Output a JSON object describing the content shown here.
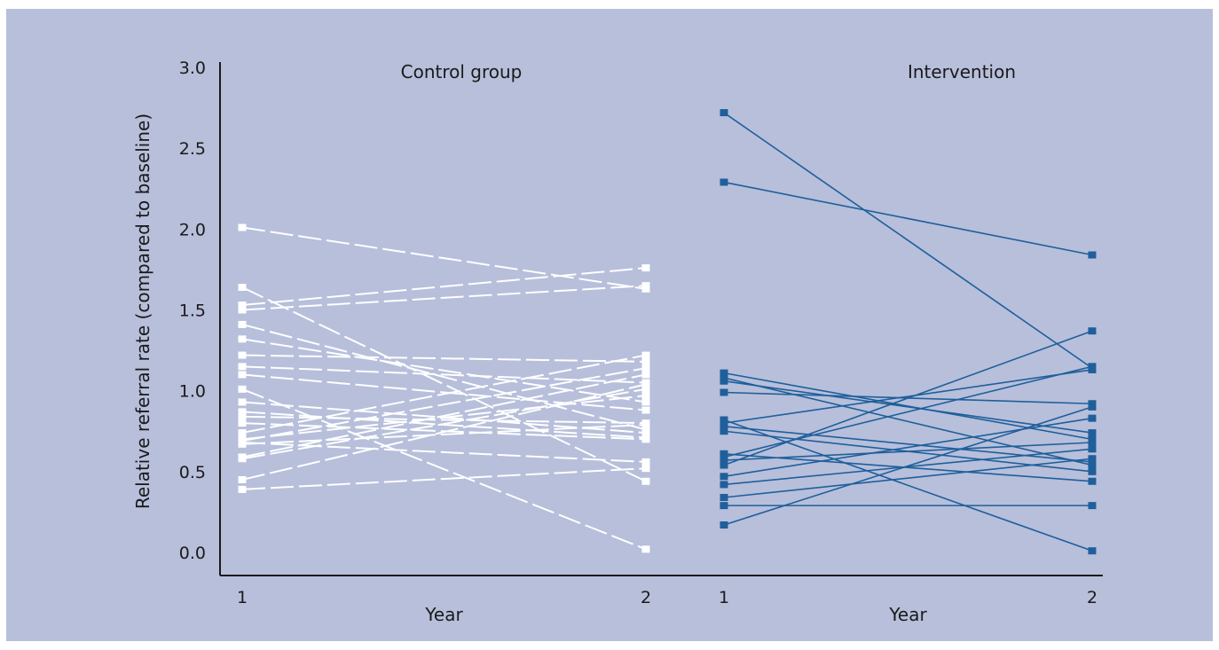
{
  "chart_data": {
    "type": "line",
    "ylabel": "Relative referral rate (compared to baseline)",
    "ylim": [
      0,
      3.0
    ],
    "yticks": [
      "0.0",
      "0.5",
      "1.0",
      "1.5",
      "2.0",
      "2.5",
      "3.0"
    ],
    "panels": [
      {
        "title": "Control group",
        "xlabel": "Year",
        "x": [
          "1",
          "2"
        ],
        "line_color": "#ffffff",
        "line_style": "dashed",
        "series": [
          {
            "values": [
              2.01,
              1.63
            ]
          },
          {
            "values": [
              1.64,
              0.44
            ]
          },
          {
            "values": [
              1.53,
              1.76
            ]
          },
          {
            "values": [
              1.5,
              1.65
            ]
          },
          {
            "values": [
              1.41,
              0.76
            ]
          },
          {
            "values": [
              1.32,
              0.93
            ]
          },
          {
            "values": [
              1.22,
              1.18
            ]
          },
          {
            "values": [
              1.15,
              1.05
            ]
          },
          {
            "values": [
              1.1,
              0.88
            ]
          },
          {
            "values": [
              1.01,
              0.02
            ]
          },
          {
            "values": [
              0.93,
              0.74
            ]
          },
          {
            "values": [
              0.87,
              0.71
            ]
          },
          {
            "values": [
              0.84,
              0.8
            ]
          },
          {
            "values": [
              0.8,
              0.7
            ]
          },
          {
            "values": [
              0.74,
              1.22
            ]
          },
          {
            "values": [
              0.7,
              0.97
            ]
          },
          {
            "values": [
              0.69,
              1.14
            ]
          },
          {
            "values": [
              0.68,
              0.56
            ]
          },
          {
            "values": [
              0.67,
              0.79
            ]
          },
          {
            "values": [
              0.59,
              1.1
            ]
          },
          {
            "values": [
              0.58,
              1.01
            ]
          },
          {
            "values": [
              0.45,
              1.04
            ]
          },
          {
            "values": [
              0.39,
              0.52
            ]
          }
        ]
      },
      {
        "title": "Intervention",
        "xlabel": "Year",
        "x": [
          "1",
          "2"
        ],
        "line_color": "#1f5f9b",
        "line_style": "solid",
        "series": [
          {
            "values": [
              2.72,
              1.14
            ]
          },
          {
            "values": [
              2.29,
              1.84
            ]
          },
          {
            "values": [
              1.11,
              0.7
            ]
          },
          {
            "values": [
              1.08,
              0.54
            ]
          },
          {
            "values": [
              1.06,
              0.74
            ]
          },
          {
            "values": [
              0.99,
              0.92
            ]
          },
          {
            "values": [
              0.82,
              0.01
            ]
          },
          {
            "values": [
              0.8,
              1.13
            ]
          },
          {
            "values": [
              0.78,
              0.56
            ]
          },
          {
            "values": [
              0.75,
              0.5
            ]
          },
          {
            "values": [
              0.61,
              0.44
            ]
          },
          {
            "values": [
              0.59,
              1.15
            ]
          },
          {
            "values": [
              0.57,
              0.68
            ]
          },
          {
            "values": [
              0.54,
              1.37
            ]
          },
          {
            "values": [
              0.47,
              0.83
            ]
          },
          {
            "values": [
              0.42,
              0.64
            ]
          },
          {
            "values": [
              0.34,
              0.58
            ]
          },
          {
            "values": [
              0.29,
              0.29
            ]
          },
          {
            "values": [
              0.17,
              0.9
            ]
          }
        ]
      }
    ]
  }
}
